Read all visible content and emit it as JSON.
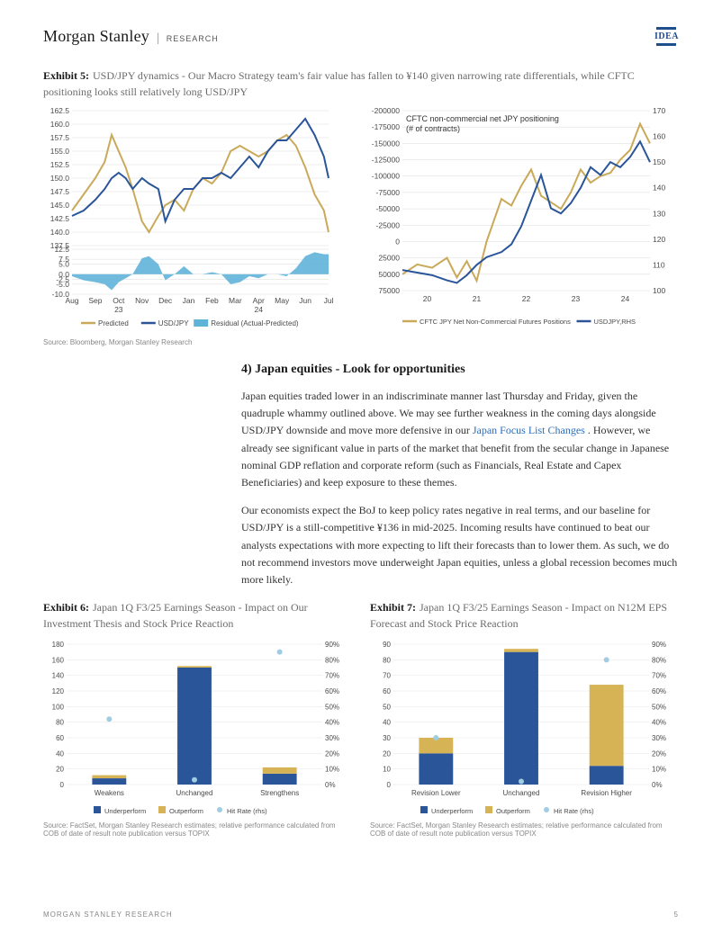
{
  "header": {
    "brand": "Morgan Stanley",
    "division": "RESEARCH",
    "badge": "IDEA"
  },
  "exhibit5": {
    "label": "Exhibit 5:",
    "desc": "USD/JPY dynamics - Our Macro Strategy team's fair value has fallen to ¥140 given narrowing rate differentials, while CFTC positioning looks still relatively long USD/JPY",
    "source": "Source: Bloomberg, Morgan Stanley Research",
    "left": {
      "type": "line+area",
      "y_ticks": [
        137.5,
        140.0,
        142.5,
        145.0,
        147.5,
        150.0,
        152.5,
        155.0,
        157.5,
        160.0,
        162.5
      ],
      "y2_ticks": [
        -10.0,
        -5.0,
        -2.5,
        0.0,
        5.0,
        7.5,
        12.5
      ],
      "x_labels": [
        "Aug",
        "Sep",
        "Oct",
        "Nov",
        "Dec",
        "Jan",
        "Feb",
        "Mar",
        "Apr",
        "May",
        "Jun",
        "Jul"
      ],
      "x_sub": [
        "23",
        "24"
      ],
      "legend": [
        "Predicted",
        "USD/JPY",
        "Residual (Actual-Predicted)"
      ],
      "colors": {
        "predicted": "#c9a95a",
        "usdjpy": "#2a5599",
        "residual": "#5fb3d9",
        "grid": "#d9d9d9",
        "axis_text": "#4a4a4a"
      },
      "predicted": [
        [
          0,
          144
        ],
        [
          0.5,
          147
        ],
        [
          1,
          150
        ],
        [
          1.4,
          153
        ],
        [
          1.7,
          158
        ],
        [
          2,
          155
        ],
        [
          2.3,
          152
        ],
        [
          2.6,
          148
        ],
        [
          3,
          142
        ],
        [
          3.3,
          140
        ],
        [
          3.7,
          143
        ],
        [
          4,
          145
        ],
        [
          4.4,
          146
        ],
        [
          4.8,
          144
        ],
        [
          5.2,
          148
        ],
        [
          5.6,
          150
        ],
        [
          6,
          149
        ],
        [
          6.4,
          151
        ],
        [
          6.8,
          155
        ],
        [
          7.2,
          156
        ],
        [
          7.6,
          155
        ],
        [
          8,
          154
        ],
        [
          8.4,
          155
        ],
        [
          8.8,
          157
        ],
        [
          9.2,
          158
        ],
        [
          9.6,
          156
        ],
        [
          10,
          152
        ],
        [
          10.4,
          147
        ],
        [
          10.8,
          144
        ],
        [
          11,
          140
        ]
      ],
      "usdjpy": [
        [
          0,
          143
        ],
        [
          0.5,
          144
        ],
        [
          1,
          146
        ],
        [
          1.4,
          148
        ],
        [
          1.7,
          150
        ],
        [
          2,
          151
        ],
        [
          2.3,
          150
        ],
        [
          2.6,
          148
        ],
        [
          3,
          150
        ],
        [
          3.3,
          149
        ],
        [
          3.7,
          148
        ],
        [
          4,
          142
        ],
        [
          4.4,
          146
        ],
        [
          4.8,
          148
        ],
        [
          5.2,
          148
        ],
        [
          5.6,
          150
        ],
        [
          6,
          150
        ],
        [
          6.4,
          151
        ],
        [
          6.8,
          150
        ],
        [
          7.2,
          152
        ],
        [
          7.6,
          154
        ],
        [
          8,
          152
        ],
        [
          8.4,
          155
        ],
        [
          8.8,
          157
        ],
        [
          9.2,
          157
        ],
        [
          9.6,
          159
        ],
        [
          10,
          161
        ],
        [
          10.4,
          158
        ],
        [
          10.8,
          154
        ],
        [
          11,
          150
        ]
      ],
      "residual": [
        [
          0,
          -1
        ],
        [
          0.5,
          -3
        ],
        [
          1,
          -4
        ],
        [
          1.4,
          -5
        ],
        [
          1.7,
          -8
        ],
        [
          2,
          -4
        ],
        [
          2.3,
          -2
        ],
        [
          2.6,
          0
        ],
        [
          3,
          8
        ],
        [
          3.3,
          9
        ],
        [
          3.7,
          5
        ],
        [
          4,
          -3
        ],
        [
          4.4,
          0
        ],
        [
          4.8,
          4
        ],
        [
          5.2,
          0
        ],
        [
          5.6,
          0
        ],
        [
          6,
          1
        ],
        [
          6.4,
          0
        ],
        [
          6.8,
          -5
        ],
        [
          7.2,
          -4
        ],
        [
          7.6,
          -1
        ],
        [
          8,
          -2
        ],
        [
          8.4,
          0
        ],
        [
          8.8,
          0
        ],
        [
          9.2,
          -1
        ],
        [
          9.6,
          3
        ],
        [
          10,
          9
        ],
        [
          10.4,
          11
        ],
        [
          10.8,
          10
        ],
        [
          11,
          10
        ]
      ]
    },
    "right": {
      "type": "dual-axis-line",
      "title": "CFTC non-commercial net JPY positioning\n(# of contracts)",
      "y1_ticks": [
        -200000,
        -175000,
        -150000,
        -125000,
        -100000,
        -75000,
        -50000,
        -25000,
        0,
        25000,
        50000,
        75000
      ],
      "y2_ticks": [
        100,
        110,
        120,
        130,
        140,
        150,
        160,
        170
      ],
      "x_labels": [
        "20",
        "21",
        "22",
        "23",
        "24"
      ],
      "legend": [
        "CFTC JPY Net Non-Commercial Futures Positions",
        "USDJPY,RHS"
      ],
      "colors": {
        "cftc": "#c9a95a",
        "usdjpy": "#2a5599",
        "grid": "#d9d9d9"
      },
      "cftc": [
        [
          0,
          50000
        ],
        [
          0.3,
          35000
        ],
        [
          0.6,
          40000
        ],
        [
          0.9,
          25000
        ],
        [
          1.1,
          55000
        ],
        [
          1.3,
          30000
        ],
        [
          1.5,
          60000
        ],
        [
          1.7,
          0
        ],
        [
          2,
          -65000
        ],
        [
          2.2,
          -55000
        ],
        [
          2.4,
          -85000
        ],
        [
          2.6,
          -110000
        ],
        [
          2.8,
          -70000
        ],
        [
          3,
          -60000
        ],
        [
          3.2,
          -50000
        ],
        [
          3.4,
          -75000
        ],
        [
          3.6,
          -110000
        ],
        [
          3.8,
          -90000
        ],
        [
          4,
          -100000
        ],
        [
          4.2,
          -105000
        ],
        [
          4.4,
          -125000
        ],
        [
          4.6,
          -140000
        ],
        [
          4.8,
          -180000
        ],
        [
          5,
          -150000
        ]
      ],
      "usdjpy": [
        [
          0,
          108
        ],
        [
          0.3,
          107
        ],
        [
          0.6,
          106
        ],
        [
          0.9,
          104
        ],
        [
          1.1,
          103
        ],
        [
          1.3,
          106
        ],
        [
          1.5,
          110
        ],
        [
          1.7,
          113
        ],
        [
          2,
          115
        ],
        [
          2.2,
          118
        ],
        [
          2.4,
          125
        ],
        [
          2.6,
          135
        ],
        [
          2.8,
          145
        ],
        [
          3,
          132
        ],
        [
          3.2,
          130
        ],
        [
          3.4,
          134
        ],
        [
          3.6,
          140
        ],
        [
          3.8,
          148
        ],
        [
          4,
          145
        ],
        [
          4.2,
          150
        ],
        [
          4.4,
          148
        ],
        [
          4.6,
          152
        ],
        [
          4.8,
          158
        ],
        [
          5,
          150
        ]
      ]
    }
  },
  "section4": {
    "heading": "4) Japan equities - Look for opportunities",
    "p1_a": "Japan equities traded lower in an indiscriminate manner last Thursday and Friday, given the quadruple whammy outlined above. We may see further weakness in the coming days alongside USD/JPY downside and move more defensive in our ",
    "p1_link": "Japan Focus List Changes",
    "p1_b": " . However, we already see significant value in parts of the market that benefit from the secular change in Japanese nominal GDP reflation and corporate reform (such as Financials, Real Estate and Capex Beneficiaries) and keep exposure to these themes.",
    "p2": "Our economists expect the BoJ to keep policy rates negative in real terms, and our baseline for USD/JPY is a still-competitive ¥136 in mid-2025. Incoming results have continued to beat our analysts expectations with more expecting to lift their forecasts than to lower them. As such, we do not recommend investors move underweight Japan equities, unless a global recession becomes much more likely."
  },
  "exhibit6": {
    "label": "Exhibit 6:",
    "desc": "Japan 1Q F3/25 Earnings Season - Impact on Our Investment Thesis and Stock Price Reaction",
    "type": "stacked-bar-with-scatter",
    "y1_ticks": [
      0,
      20,
      40,
      60,
      80,
      100,
      120,
      140,
      160,
      180
    ],
    "y2_ticks": [
      "0%",
      "10%",
      "20%",
      "30%",
      "40%",
      "50%",
      "60%",
      "70%",
      "80%",
      "90%"
    ],
    "categories": [
      "Weakens",
      "Unchanged",
      "Strengthens"
    ],
    "underperform": [
      8,
      150,
      14
    ],
    "outperform": [
      4,
      2,
      8
    ],
    "hitrate_pct": [
      42,
      3,
      85
    ],
    "legend": [
      "Underperform",
      "Outperform",
      "Hit Rate (rhs)"
    ],
    "colors": {
      "under": "#2a5599",
      "out": "#d6b455",
      "hit": "#a0cde3",
      "grid": "#e6e6e6"
    },
    "source": "Source: FactSet, Morgan Stanley Research estimates; relative performance calculated from COB of date of result note publication versus TOPIX"
  },
  "exhibit7": {
    "label": "Exhibit 7:",
    "desc": "Japan 1Q F3/25 Earnings Season - Impact on N12M EPS Forecast and Stock Price Reaction",
    "type": "stacked-bar-with-scatter",
    "y1_ticks": [
      0,
      10,
      20,
      30,
      40,
      50,
      60,
      70,
      80,
      90
    ],
    "y2_ticks": [
      "0%",
      "10%",
      "20%",
      "30%",
      "40%",
      "50%",
      "60%",
      "70%",
      "80%",
      "90%"
    ],
    "categories": [
      "Revision Lower",
      "Unchanged",
      "Revision Higher"
    ],
    "underperform": [
      20,
      85,
      12
    ],
    "outperform": [
      10,
      2,
      52
    ],
    "hitrate_pct": [
      30,
      2,
      80
    ],
    "legend": [
      "Underperform",
      "Outperform",
      "Hit Rate (rhs)"
    ],
    "colors": {
      "under": "#2a5599",
      "out": "#d6b455",
      "hit": "#a0cde3",
      "grid": "#e6e6e6"
    },
    "source": "Source: FactSet, Morgan Stanley Research estimates; relative performance calculated from COB of date of result note publication versus TOPIX"
  },
  "footer": {
    "left": "MORGAN STANLEY RESEARCH",
    "page": "5"
  }
}
